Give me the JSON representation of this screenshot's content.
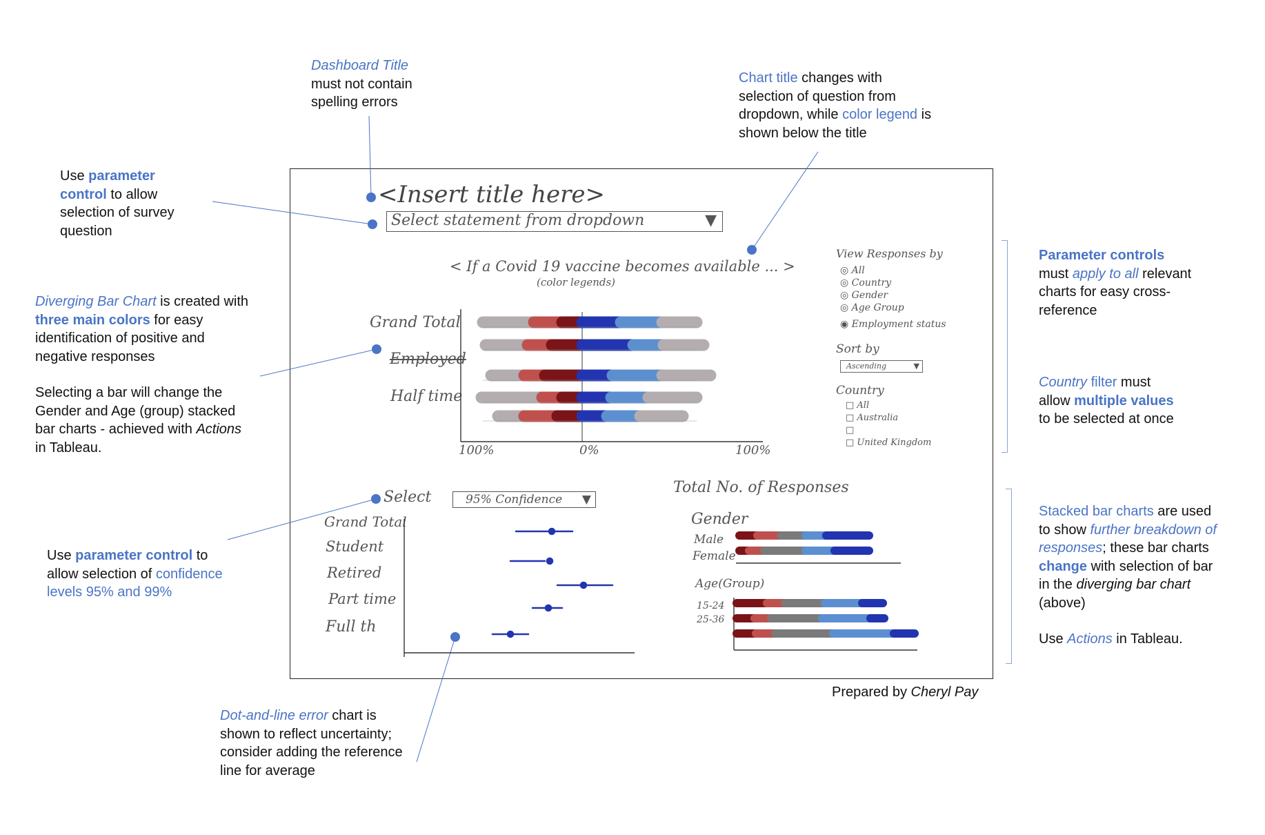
{
  "sketch": {
    "title_placeholder": "<Insert title here>",
    "dropdown_text": "Select statement from dropdown",
    "chart_title": "< If a Covid 19 vaccine becomes available ... >",
    "color_legend": "(color legends)",
    "diverging_rows": [
      "Grand Total",
      "Employed",
      "Half time"
    ],
    "axis_left": "100%",
    "axis_mid": "0%",
    "axis_right": "100%",
    "view_responses": {
      "title": "View Responses by",
      "options": [
        "All",
        "Country",
        "Gender",
        "Age Group",
        "Employment status"
      ]
    },
    "sort_by": {
      "title": "Sort by",
      "value": "Ascending"
    },
    "country": {
      "title": "Country",
      "options": [
        "All",
        "Australia",
        "",
        "United Kingdom"
      ]
    },
    "select_label": "Select",
    "confidence_value": "95% Confidence",
    "error_rows": [
      "Grand Total",
      "Student",
      "Retired",
      "Part time",
      "Full th"
    ],
    "total_responses": "Total No. of Responses",
    "gender": {
      "title": "Gender",
      "rows": [
        "Male",
        "Female"
      ]
    },
    "age": {
      "title": "Age(Group)",
      "rows": [
        "15-24",
        "25-36"
      ]
    }
  },
  "colors": {
    "accent": "#4a74c6",
    "grey": "#b3adb0",
    "light_red": "#c0504d",
    "dark_red": "#7a1418",
    "dark_blue": "#2234b0",
    "light_blue": "#5b8fd0",
    "mid_grey": "#7a7a7a"
  },
  "notes": {
    "dashboard_title": {
      "a": "Dashboard Title",
      "b": "must not contain spelling errors"
    },
    "parameter_control": {
      "pre": "Use ",
      "a": "parameter control",
      "b": " to allow selection of survey question"
    },
    "chart_title": {
      "a": "Chart title",
      "b": " changes with selection of question from dropdown, while ",
      "c": "color legend",
      "d": " is shown below the title"
    },
    "diverging": {
      "a": "Diverging Bar Chart",
      "b": " is created with ",
      "c": "three main colors",
      "d": " for easy identification of positive and negative responses",
      "e": "Selecting a bar will change the Gender and Age (group) stacked bar charts - achieved with ",
      "f": "Actions",
      "g": " in Tableau."
    },
    "param_controls_right": {
      "a": "Parameter controls",
      "b": "must ",
      "c": "apply to all",
      "d": " relevant charts for easy cross-reference"
    },
    "country_filter": {
      "a": "Country",
      "b": " filter",
      "c": " must allow ",
      "d": "multiple values",
      "e": " to be selected at once"
    },
    "confidence": {
      "pre": "Use ",
      "a": "parameter control",
      "b": " to allow selection of ",
      "c": "confidence levels 95% and 99%"
    },
    "stacked": {
      "a": "Stacked bar charts",
      "b": " are used to show ",
      "c": "further breakdown of responses",
      "d": "; these bar charts ",
      "e": "change",
      "f": " with selection of bar in the ",
      "g": "diverging bar chart",
      "h": " (above)",
      "i": "Use ",
      "j": "Actions",
      "k": " in Tableau."
    },
    "dot_line": {
      "a": "Dot-and-line error",
      "b": " chart is shown to reflect uncertainty; consider adding the reference line for average"
    },
    "prepared_by": {
      "a": "Prepared by ",
      "b": "Cheryl Pay"
    }
  }
}
